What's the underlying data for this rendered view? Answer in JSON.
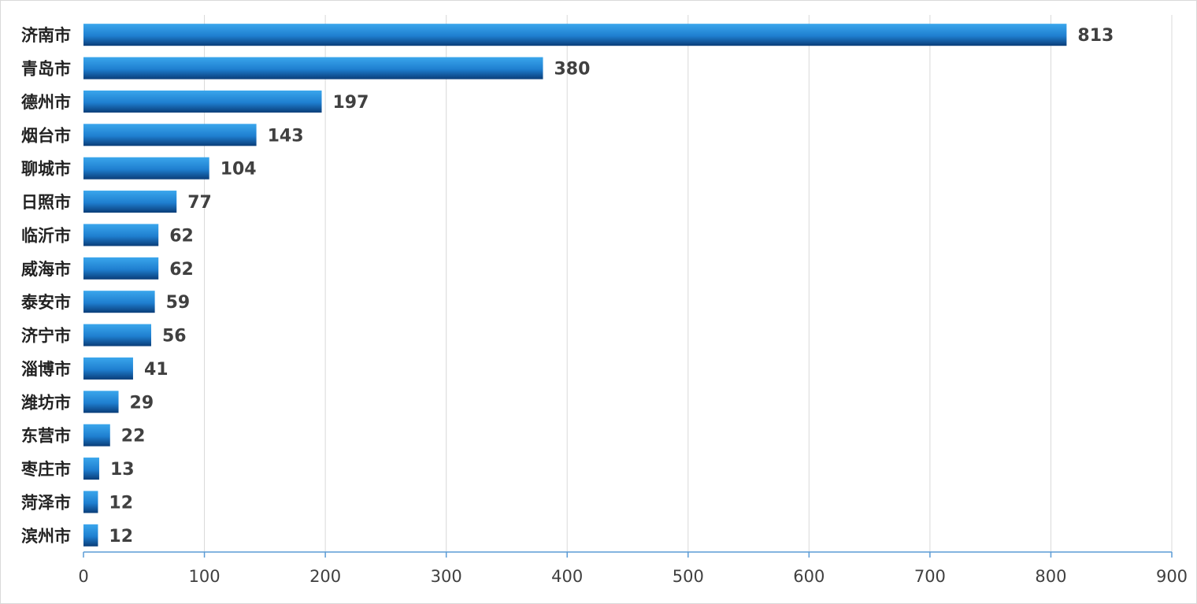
{
  "chart_data": {
    "type": "bar",
    "orientation": "horizontal",
    "title": "",
    "xlabel": "",
    "ylabel": "",
    "categories": [
      "济南市",
      "青岛市",
      "德州市",
      "烟台市",
      "聊城市",
      "日照市",
      "临沂市",
      "威海市",
      "泰安市",
      "济宁市",
      "淄博市",
      "潍坊市",
      "东营市",
      "枣庄市",
      "菏泽市",
      "滨州市"
    ],
    "values": [
      813,
      380,
      197,
      143,
      104,
      77,
      62,
      62,
      59,
      56,
      41,
      29,
      22,
      13,
      12,
      12
    ],
    "value_labels": [
      "813",
      "380",
      "197",
      "143",
      "104",
      "77",
      "62",
      "62",
      "59",
      "56",
      "41",
      "29",
      "22",
      "13",
      "12",
      "12"
    ],
    "xlim": [
      0,
      900
    ],
    "ticks": [
      0,
      100,
      200,
      300,
      400,
      500,
      600,
      700,
      800,
      900
    ],
    "tick_labels": [
      "0",
      "100",
      "200",
      "300",
      "400",
      "500",
      "600",
      "700",
      "800",
      "900"
    ],
    "grid": "vertical",
    "legend": "none",
    "colors": {
      "bar_top": "#3aa6ec",
      "bar_mid": "#1f7fd0",
      "bar_bottom": "#0a3d78",
      "axis": "#5b9bd5",
      "grid": "#d9d9d9",
      "text": "#404040"
    }
  }
}
